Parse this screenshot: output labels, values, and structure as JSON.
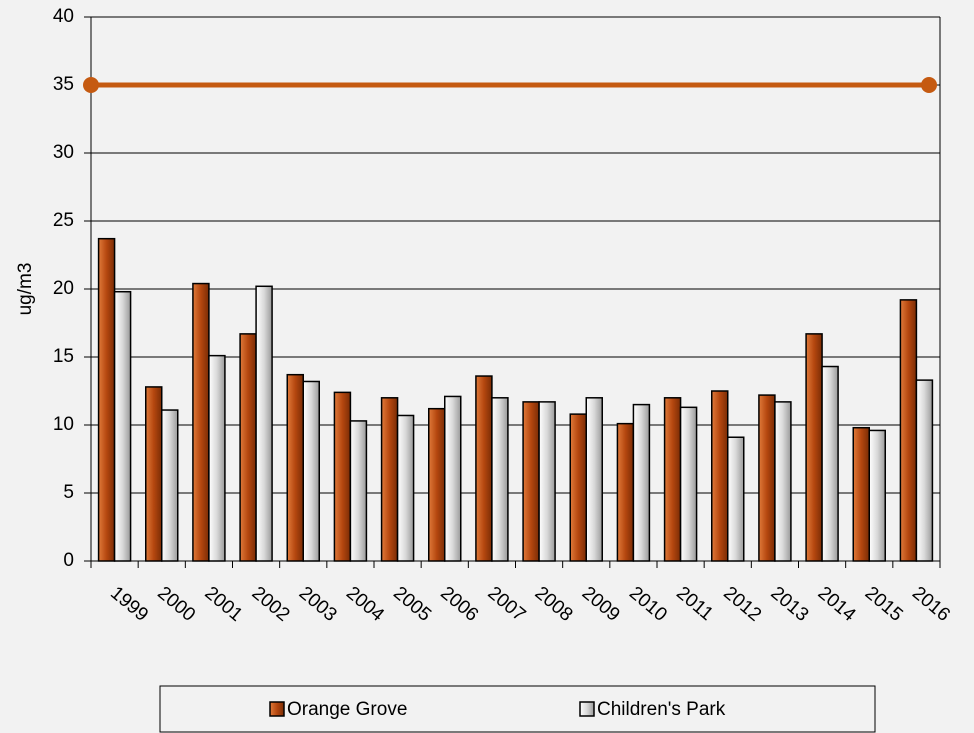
{
  "chart_data": {
    "type": "bar",
    "y_label": "ug/m3",
    "categories": [
      "1999",
      "2000",
      "2001",
      "2002",
      "2003",
      "2004",
      "2005",
      "2006",
      "2007",
      "2008",
      "2009",
      "2010",
      "2011",
      "2012",
      "2013",
      "2014",
      "2015",
      "2016"
    ],
    "series": [
      {
        "name": "Orange Grove",
        "color": "#b5470f",
        "values": [
          23.7,
          12.8,
          20.4,
          16.7,
          13.7,
          12.4,
          12.0,
          11.2,
          13.6,
          11.7,
          10.8,
          10.1,
          12.0,
          12.5,
          12.2,
          16.7,
          9.8,
          19.2
        ]
      },
      {
        "name": "Children's Park",
        "color": "#d9d9d9",
        "values": [
          19.8,
          11.1,
          15.1,
          20.2,
          13.2,
          10.3,
          10.7,
          12.1,
          12.0,
          11.7,
          12.0,
          11.5,
          11.3,
          9.1,
          11.7,
          14.3,
          9.6,
          13.3
        ]
      }
    ],
    "reference_line": {
      "value": 35,
      "color": "#c55a11"
    },
    "ylim": [
      0,
      40
    ],
    "yticks": [
      0,
      5,
      10,
      15,
      20,
      25,
      30,
      35,
      40
    ],
    "grid": true
  }
}
